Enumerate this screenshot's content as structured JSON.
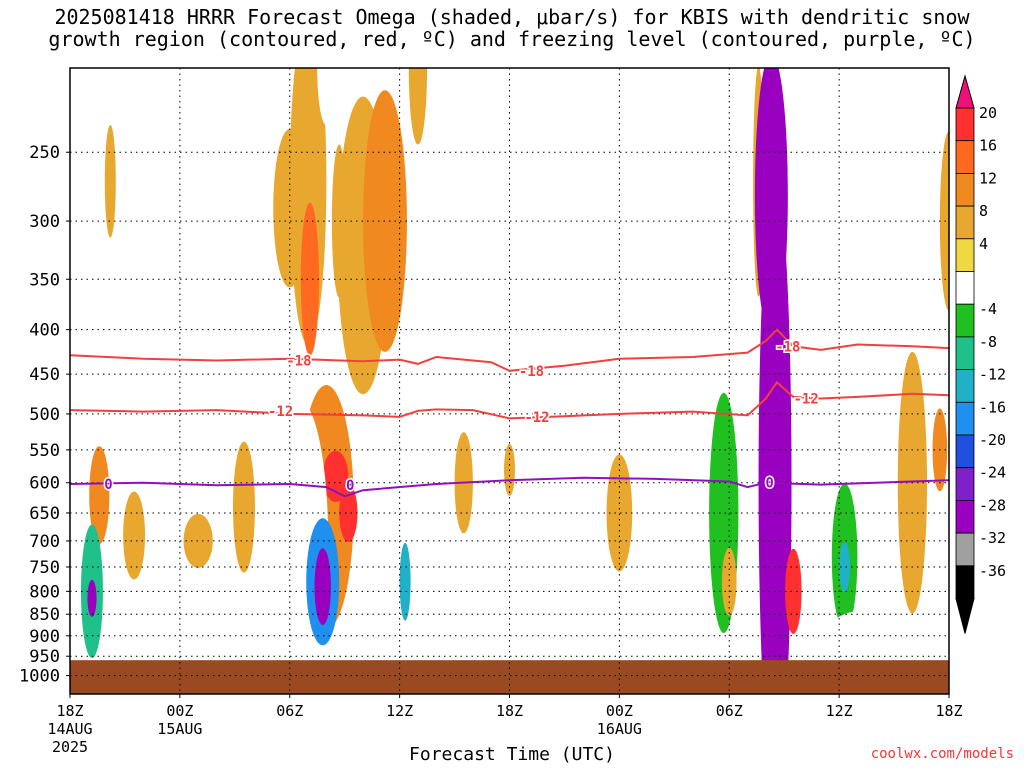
{
  "title_line1": "2025081418 HRRR Forecast Omega (shaded, μbar/s) for KBIS with dendritic snow",
  "title_line2": "growth region (contoured, red, ºC) and freezing level (contoured, purple, ºC)",
  "credit": "coolwx.com/models",
  "chart_data": {
    "type": "heatmap",
    "xlabel": "Forecast Time (UTC)",
    "ylabel": "",
    "x_ticks": [
      {
        "label": "18Z",
        "sub1": "14AUG",
        "sub2": "2025",
        "hour": 0
      },
      {
        "label": "00Z",
        "sub1": "15AUG",
        "sub2": "",
        "hour": 6
      },
      {
        "label": "06Z",
        "sub1": "",
        "sub2": "",
        "hour": 12
      },
      {
        "label": "12Z",
        "sub1": "",
        "sub2": "",
        "hour": 18
      },
      {
        "label": "18Z",
        "sub1": "",
        "sub2": "",
        "hour": 24
      },
      {
        "label": "00Z",
        "sub1": "16AUG",
        "sub2": "",
        "hour": 30
      },
      {
        "label": "06Z",
        "sub1": "",
        "sub2": "",
        "hour": 36
      },
      {
        "label": "12Z",
        "sub1": "",
        "sub2": "",
        "hour": 42
      },
      {
        "label": "18Z",
        "sub1": "",
        "sub2": "",
        "hour": 48
      }
    ],
    "xlim": [
      0,
      48
    ],
    "y_ticks": [
      250,
      300,
      350,
      400,
      450,
      500,
      550,
      600,
      650,
      700,
      750,
      800,
      850,
      900,
      950,
      1000
    ],
    "ylim": [
      1050,
      200
    ],
    "y_scale": "log-pressure",
    "grid": true,
    "colorbar": {
      "labels": [
        "20",
        "16",
        "12",
        "8",
        "4",
        "-4",
        "-8",
        "-12",
        "-16",
        "-20",
        "-24",
        "-28",
        "-32",
        "-36"
      ],
      "colors": [
        "#ff3030",
        "#ff6a20",
        "#f08a20",
        "#e8a830",
        "#f0d840",
        "#ffffff",
        "#20c020",
        "#20c08a",
        "#20b0c8",
        "#2090f0",
        "#2050e0",
        "#8020c8",
        "#9a00c0",
        "#a0a0a0",
        "#000000"
      ],
      "top_color": "#f0107a",
      "bottom_color": "#000000"
    },
    "ground_color": "#9a4a22",
    "contours": [
      {
        "label": "-18",
        "color": "#f04040",
        "points": [
          [
            0,
            428
          ],
          [
            4,
            432
          ],
          [
            8,
            434
          ],
          [
            12,
            432
          ],
          [
            16,
            435
          ],
          [
            18,
            433
          ],
          [
            19,
            438
          ],
          [
            20,
            430
          ],
          [
            23,
            436
          ],
          [
            24,
            446
          ],
          [
            27,
            440
          ],
          [
            30,
            432
          ],
          [
            34,
            430
          ],
          [
            37,
            425
          ],
          [
            38,
            412
          ],
          [
            38.6,
            400
          ],
          [
            39.5,
            418
          ],
          [
            41,
            422
          ],
          [
            43,
            416
          ],
          [
            46,
            418
          ],
          [
            48,
            420
          ]
        ]
      },
      {
        "label": "-12",
        "color": "#f04040",
        "points": [
          [
            0,
            495
          ],
          [
            4,
            497
          ],
          [
            8,
            495
          ],
          [
            12,
            500
          ],
          [
            16,
            502
          ],
          [
            18,
            504
          ],
          [
            19,
            496
          ],
          [
            20,
            494
          ],
          [
            22,
            495
          ],
          [
            24,
            506
          ],
          [
            27,
            503
          ],
          [
            30,
            500
          ],
          [
            34,
            497
          ],
          [
            37,
            502
          ],
          [
            38,
            480
          ],
          [
            38.6,
            460
          ],
          [
            39.5,
            478
          ],
          [
            41,
            480
          ],
          [
            43,
            478
          ],
          [
            46,
            474
          ],
          [
            48,
            476
          ]
        ]
      },
      {
        "label": "0",
        "color": "#9010c0",
        "points": [
          [
            0,
            602
          ],
          [
            4,
            600
          ],
          [
            8,
            604
          ],
          [
            12,
            602
          ],
          [
            14,
            607
          ],
          [
            15,
            622
          ],
          [
            16,
            612
          ],
          [
            20,
            602
          ],
          [
            24,
            596
          ],
          [
            28,
            592
          ],
          [
            32,
            594
          ],
          [
            36,
            598
          ],
          [
            37,
            607
          ],
          [
            38,
            600
          ],
          [
            41,
            603
          ],
          [
            44,
            600
          ],
          [
            48,
            596
          ]
        ]
      }
    ],
    "contour_labels": [
      {
        "text": "-18",
        "hour": 12.5,
        "p": 434
      },
      {
        "text": "-18",
        "hour": 25.2,
        "p": 446
      },
      {
        "text": "-18",
        "hour": 39.2,
        "p": 418
      },
      {
        "text": "-12",
        "hour": 11.5,
        "p": 496
      },
      {
        "text": "-12",
        "hour": 25.5,
        "p": 504
      },
      {
        "text": "-12",
        "hour": 40.2,
        "p": 480
      },
      {
        "text": "0",
        "hour": 2.1,
        "p": 602
      },
      {
        "text": "0",
        "hour": 15.3,
        "p": 604
      },
      {
        "text": "0",
        "hour": 38.2,
        "p": 600
      }
    ],
    "omega_blobs": [
      {
        "hour": 1.6,
        "p": 620,
        "rx": 0.55,
        "rp": 80,
        "value": 8
      },
      {
        "hour": 1.2,
        "p": 800,
        "rx": 0.6,
        "rp": 140,
        "value": -14
      },
      {
        "hour": 1.2,
        "p": 815,
        "rx": 0.25,
        "rp": 40,
        "value": -36
      },
      {
        "hour": 2.2,
        "p": 270,
        "rx": 0.3,
        "rp": 40,
        "value": 6
      },
      {
        "hour": 3.2,
        "p": 330,
        "rx": 0.35,
        "rp": 60,
        "value": -6
      },
      {
        "hour": 2.3,
        "p": 390,
        "rx": 0.6,
        "rp": 30,
        "value": -7
      },
      {
        "hour": 3.5,
        "p": 690,
        "rx": 0.6,
        "rp": 80,
        "value": 6
      },
      {
        "hour": 3.5,
        "p": 860,
        "rx": 1.0,
        "rp": 50,
        "value": -6
      },
      {
        "hour": 7,
        "p": 900,
        "rx": 2.5,
        "rp": 35,
        "value": -6
      },
      {
        "hour": 7,
        "p": 700,
        "rx": 0.8,
        "rp": 50,
        "value": 5
      },
      {
        "hour": 9.5,
        "p": 640,
        "rx": 0.6,
        "rp": 110,
        "value": 5
      },
      {
        "hour": 12,
        "p": 290,
        "rx": 0.9,
        "rp": 60,
        "value": 5
      },
      {
        "hour": 13,
        "p": 270,
        "rx": 1.0,
        "rp": 110,
        "value": 7
      },
      {
        "hour": 13.1,
        "p": 350,
        "rx": 0.5,
        "rp": 70,
        "value": 14
      },
      {
        "hour": 14,
        "p": 200,
        "rx": 0.5,
        "rp": 30,
        "value": -6
      },
      {
        "hour": 14.7,
        "p": 300,
        "rx": 0.4,
        "rp": 60,
        "value": 6
      },
      {
        "hour": 16,
        "p": 320,
        "rx": 1.4,
        "rp": 120,
        "value": 5
      },
      {
        "hour": 17.2,
        "p": 300,
        "rx": 1.2,
        "rp": 100,
        "value": 8
      },
      {
        "hour": 19,
        "p": 200,
        "rx": 0.5,
        "rp": 40,
        "value": 5
      },
      {
        "hour": 14,
        "p": 640,
        "rx": 1.5,
        "rp": 200,
        "value": 10
      },
      {
        "hour": 14.5,
        "p": 590,
        "rx": 0.7,
        "rp": 40,
        "value": 16
      },
      {
        "hour": 15.2,
        "p": 650,
        "rx": 0.5,
        "rp": 50,
        "value": 18
      },
      {
        "hour": 12.5,
        "p": 700,
        "rx": 1.6,
        "rp": 250,
        "value": -6
      },
      {
        "hour": 13.8,
        "p": 780,
        "rx": 0.9,
        "rp": 130,
        "value": -24
      },
      {
        "hour": 13.8,
        "p": 790,
        "rx": 0.45,
        "rp": 80,
        "value": -36
      },
      {
        "hour": 17.5,
        "p": 730,
        "rx": 1.0,
        "rp": 220,
        "value": -6
      },
      {
        "hour": 18.3,
        "p": 780,
        "rx": 0.3,
        "rp": 80,
        "value": -18
      },
      {
        "hour": 21,
        "p": 760,
        "rx": 0.8,
        "rp": 220,
        "value": -6
      },
      {
        "hour": 21.5,
        "p": 600,
        "rx": 0.5,
        "rp": 80,
        "value": 5
      },
      {
        "hour": 22,
        "p": 400,
        "rx": 0.7,
        "rp": 60,
        "value": -6
      },
      {
        "hour": 24,
        "p": 580,
        "rx": 0.3,
        "rp": 40,
        "value": 5
      },
      {
        "hour": 25.2,
        "p": 870,
        "rx": 1.0,
        "rp": 60,
        "value": -6
      },
      {
        "hour": 27.2,
        "p": 370,
        "rx": 0.6,
        "rp": 100,
        "value": -6
      },
      {
        "hour": 27.2,
        "p": 430,
        "rx": 0.5,
        "rp": 40,
        "value": -6
      },
      {
        "hour": 30,
        "p": 650,
        "rx": 0.7,
        "rp": 100,
        "value": 5
      },
      {
        "hour": 32,
        "p": 330,
        "rx": 0.6,
        "rp": 40,
        "value": -6
      },
      {
        "hour": 32,
        "p": 870,
        "rx": 0.8,
        "rp": 100,
        "value": -6
      },
      {
        "hour": 35.7,
        "p": 650,
        "rx": 0.8,
        "rp": 200,
        "value": -10
      },
      {
        "hour": 36,
        "p": 780,
        "rx": 0.4,
        "rp": 70,
        "value": 5
      },
      {
        "hour": 37.2,
        "p": 240,
        "rx": 0.25,
        "rp": 50,
        "value": -6
      },
      {
        "hour": 37.6,
        "p": 270,
        "rx": 0.3,
        "rp": 80,
        "value": 5
      },
      {
        "hour": 38.5,
        "p": 600,
        "rx": 0.9,
        "rp": 400,
        "value": -36
      },
      {
        "hour": 38.3,
        "p": 280,
        "rx": 0.9,
        "rp": 100,
        "value": -36
      },
      {
        "hour": 39.5,
        "p": 800,
        "rx": 0.45,
        "rp": 90,
        "value": 16
      },
      {
        "hour": 39.8,
        "p": 260,
        "rx": 0.6,
        "rp": 90,
        "value": -6
      },
      {
        "hour": 41,
        "p": 250,
        "rx": 0.3,
        "rp": 50,
        "value": -6
      },
      {
        "hour": 41,
        "p": 780,
        "rx": 0.6,
        "rp": 70,
        "value": -6
      },
      {
        "hour": 42.3,
        "p": 730,
        "rx": 0.7,
        "rp": 140,
        "value": -12
      },
      {
        "hour": 42.3,
        "p": 750,
        "rx": 0.3,
        "rp": 50,
        "value": -20
      },
      {
        "hour": 43.6,
        "p": 380,
        "rx": 0.5,
        "rp": 30,
        "value": -6
      },
      {
        "hour": 44.5,
        "p": 880,
        "rx": 3.0,
        "rp": 45,
        "value": -6
      },
      {
        "hour": 46,
        "p": 600,
        "rx": 0.8,
        "rp": 200,
        "value": 6
      },
      {
        "hour": 48,
        "p": 300,
        "rx": 0.5,
        "rp": 70,
        "value": 6
      },
      {
        "hour": 47.5,
        "p": 550,
        "rx": 0.4,
        "rp": 60,
        "value": 8
      }
    ]
  }
}
